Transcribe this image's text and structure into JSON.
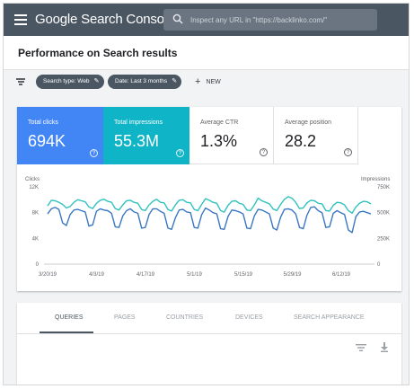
{
  "app": {
    "title": "Google Search Console"
  },
  "search": {
    "placeholder": "Inspect any URL in \"https://backlinko.com/\""
  },
  "page": {
    "title": "Performance on Search results"
  },
  "filters": {
    "chips": [
      {
        "label": "Search type: Web"
      },
      {
        "label": "Date: Last 3 months"
      }
    ],
    "new_label": "NEW"
  },
  "metrics": [
    {
      "label": "Total clicks",
      "value": "694K",
      "color": "#4285f4"
    },
    {
      "label": "Total impressions",
      "value": "55.3M",
      "color": "#0fb4c6"
    },
    {
      "label": "Average CTR",
      "value": "1.3%"
    },
    {
      "label": "Average position",
      "value": "28.2"
    }
  ],
  "tabs": [
    "QUERIES",
    "PAGES",
    "COUNTRIES",
    "DEVICES",
    "SEARCH APPEARANCE"
  ],
  "icons": {
    "menu": "hamburger-icon",
    "search": "search-icon",
    "filter": "filter-icon",
    "edit": "pencil-icon",
    "add": "plus-icon",
    "help": "help-icon",
    "download": "download-icon"
  },
  "chart_data": {
    "type": "line",
    "y_left_label": "Clicks",
    "y_right_label": "Impressions",
    "y_left_ticks": [
      "12K",
      "8K",
      "4K",
      "0"
    ],
    "y_right_ticks": [
      "750K",
      "500K",
      "250K",
      "0"
    ],
    "x_ticks": [
      "3/20/19",
      "4/3/19",
      "4/17/19",
      "5/1/19",
      "5/15/19",
      "5/29/19",
      "6/12/19"
    ],
    "ylim_left": [
      0,
      12000
    ],
    "ylim_right": [
      0,
      750000
    ],
    "series": [
      {
        "name": "Clicks",
        "axis": "left",
        "color": "#3b78c2",
        "values": [
          7800,
          8600,
          8800,
          8500,
          6400,
          6000,
          7700,
          8400,
          8500,
          8300,
          8100,
          5900,
          6100,
          8200,
          8600,
          8400,
          8300,
          7900,
          5800,
          5700,
          7500,
          8300,
          8600,
          8100,
          7900,
          5600,
          5700,
          7700,
          8600,
          8600,
          8200,
          7900,
          5600,
          5400,
          7200,
          8400,
          8500,
          8100,
          8000,
          5700,
          5600,
          7700,
          8700,
          8400,
          8000,
          7800,
          5500,
          5400,
          7400,
          8400,
          8300,
          8100,
          7800,
          5600,
          5500,
          7500,
          8500,
          8400,
          8100,
          7800,
          5600,
          5300,
          7300,
          8500,
          8600,
          8400,
          7800,
          5700,
          5500,
          7600,
          8800,
          8900,
          8300,
          8000,
          5700,
          5800,
          7900,
          8300,
          8000,
          7700,
          5300,
          4900,
          7400,
          8100,
          8200,
          8000,
          7800
        ]
      },
      {
        "name": "Impressions",
        "axis": "right",
        "color": "#31c2bf",
        "values": [
          565000,
          620000,
          615000,
          600000,
          580000,
          545000,
          560000,
          600000,
          625000,
          615000,
          605000,
          555000,
          540000,
          590000,
          620000,
          630000,
          610000,
          600000,
          540000,
          525000,
          575000,
          615000,
          620000,
          600000,
          590000,
          530000,
          520000,
          575000,
          610000,
          630000,
          600000,
          595000,
          530000,
          515000,
          575000,
          620000,
          625000,
          600000,
          595000,
          530000,
          520000,
          580000,
          635000,
          620000,
          600000,
          590000,
          520000,
          505000,
          570000,
          610000,
          615000,
          590000,
          580000,
          525000,
          520000,
          575000,
          640000,
          615000,
          600000,
          585000,
          535000,
          520000,
          580000,
          630000,
          655000,
          640000,
          600000,
          540000,
          545000,
          595000,
          620000,
          615000,
          590000,
          585000,
          520000,
          515000,
          570000,
          600000,
          595000,
          575000,
          520000,
          495000,
          555000,
          590000,
          610000,
          605000,
          585000
        ]
      }
    ]
  }
}
